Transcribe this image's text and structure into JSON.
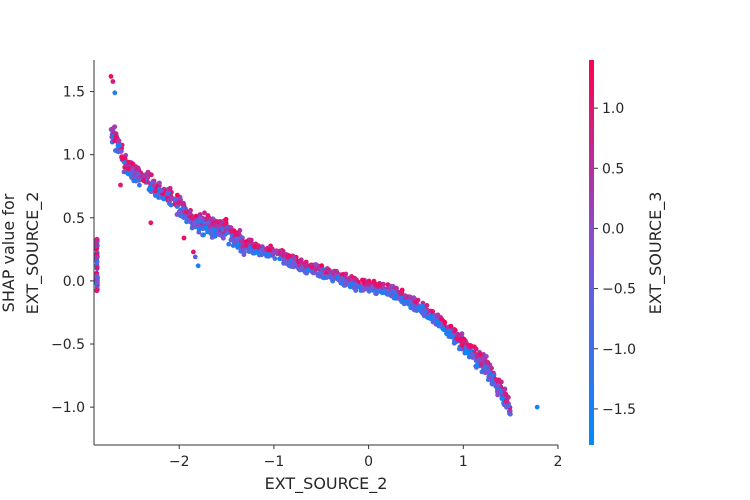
{
  "chart_data": {
    "type": "scatter",
    "xlabel": "EXT_SOURCE_2",
    "ylabel_lines": [
      "SHAP value for",
      "EXT_SOURCE_2"
    ],
    "xlim": [
      -2.9,
      2.0
    ],
    "ylim": [
      -1.3,
      1.75
    ],
    "xticks": [
      {
        "value": -2,
        "label": "−2"
      },
      {
        "value": -1,
        "label": "−1"
      },
      {
        "value": 0,
        "label": "0"
      },
      {
        "value": 1,
        "label": "1"
      },
      {
        "value": 2,
        "label": "2"
      }
    ],
    "yticks": [
      {
        "value": 1.5,
        "label": "1.5"
      },
      {
        "value": 1.0,
        "label": "1.0"
      },
      {
        "value": 0.5,
        "label": "0.5"
      },
      {
        "value": 0.0,
        "label": "0.0"
      },
      {
        "value": -0.5,
        "label": "−0.5"
      },
      {
        "value": -1.0,
        "label": "−1.0"
      }
    ],
    "grid": false,
    "colorbar": {
      "label": "EXT_SOURCE_3",
      "range": [
        -1.8,
        1.4
      ],
      "colors": [
        "#008bfb",
        "#7d54d8",
        "#ff0052"
      ],
      "ticks": [
        {
          "value": 1.0,
          "label": "1.0"
        },
        {
          "value": 0.5,
          "label": "0.5"
        },
        {
          "value": 0.0,
          "label": "0.0"
        },
        {
          "value": -0.5,
          "label": "−0.5"
        },
        {
          "value": -1.0,
          "label": "−1.0"
        },
        {
          "value": -1.5,
          "label": "−1.5"
        }
      ]
    },
    "trend": [
      {
        "x": -2.72,
        "y": 1.2
      },
      {
        "x": -2.55,
        "y": 0.9
      },
      {
        "x": -2.35,
        "y": 0.8
      },
      {
        "x": -2.1,
        "y": 0.66
      },
      {
        "x": -1.85,
        "y": 0.47
      },
      {
        "x": -1.55,
        "y": 0.42
      },
      {
        "x": -1.3,
        "y": 0.28
      },
      {
        "x": -1.0,
        "y": 0.22
      },
      {
        "x": -0.7,
        "y": 0.12
      },
      {
        "x": -0.4,
        "y": 0.05
      },
      {
        "x": -0.1,
        "y": -0.03
      },
      {
        "x": 0.2,
        "y": -0.07
      },
      {
        "x": 0.5,
        "y": -0.18
      },
      {
        "x": 0.75,
        "y": -0.32
      },
      {
        "x": 1.0,
        "y": -0.5
      },
      {
        "x": 1.25,
        "y": -0.68
      },
      {
        "x": 1.4,
        "y": -0.88
      },
      {
        "x": 1.5,
        "y": -1.02
      }
    ],
    "outliers": [
      {
        "x": -2.72,
        "y": 1.62,
        "c": 1.2
      },
      {
        "x": -2.7,
        "y": 1.58,
        "c": 0.9
      },
      {
        "x": -2.68,
        "y": 1.49,
        "c": -1.4
      },
      {
        "x": -2.62,
        "y": 0.76,
        "c": 1.0
      },
      {
        "x": -2.3,
        "y": 0.46,
        "c": 1.1
      },
      {
        "x": -1.95,
        "y": 0.34,
        "c": 1.2
      },
      {
        "x": -1.85,
        "y": 0.23,
        "c": 1.0
      },
      {
        "x": -1.8,
        "y": 0.12,
        "c": -1.5
      },
      {
        "x": -1.83,
        "y": 0.19,
        "c": -0.6
      },
      {
        "x": 1.78,
        "y": -1.0,
        "c": -1.6
      }
    ],
    "left_edge_band": {
      "x": -2.87,
      "y_min": -0.1,
      "y_max": 0.33
    }
  }
}
